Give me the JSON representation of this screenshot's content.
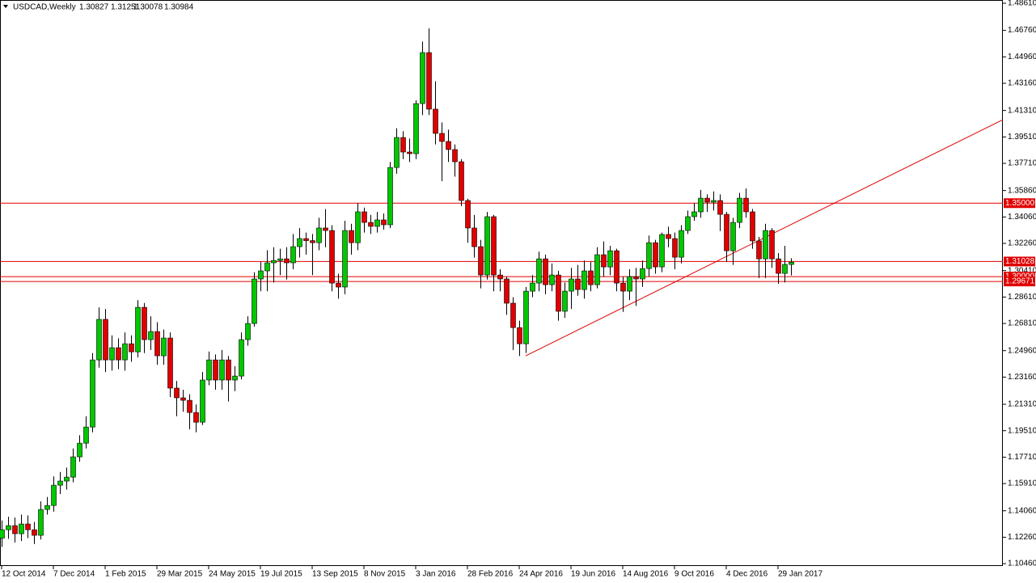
{
  "chart_data": {
    "type": "candlestick",
    "title": "USDCAD,Weekly",
    "categories": [
      "12 Oct 2014",
      null,
      null,
      null,
      null,
      null,
      null,
      null,
      "7 Dec 2014",
      null,
      null,
      null,
      null,
      null,
      null,
      null,
      "1 Feb 2015",
      null,
      null,
      null,
      null,
      null,
      null,
      null,
      "29 Mar 2015",
      null,
      null,
      null,
      null,
      null,
      null,
      null,
      "24 May 2015",
      null,
      null,
      null,
      null,
      null,
      null,
      null,
      "19 Jul 2015",
      null,
      null,
      null,
      null,
      null,
      null,
      null,
      "13 Sep 2015",
      null,
      null,
      null,
      null,
      null,
      null,
      null,
      "8 Nov 2015",
      null,
      null,
      null,
      null,
      null,
      null,
      null,
      "3 Jan 2016",
      null,
      null,
      null,
      null,
      null,
      null,
      null,
      "28 Feb 2016",
      null,
      null,
      null,
      null,
      null,
      null,
      null,
      "24 Apr 2016",
      null,
      null,
      null,
      null,
      null,
      null,
      null,
      "19 Jun 2016",
      null,
      null,
      null,
      null,
      null,
      null,
      null,
      "14 Aug 2016",
      null,
      null,
      null,
      null,
      null,
      null,
      null,
      "9 Oct 2016",
      null,
      null,
      null,
      null,
      null,
      null,
      null,
      "4 Dec 2016",
      null,
      null,
      null,
      null,
      null,
      null,
      null,
      "29 Jan 2017",
      null,
      null
    ],
    "ohlc": [
      [
        1.122,
        1.134,
        1.116,
        1.1277
      ],
      [
        1.1277,
        1.1365,
        1.1215,
        1.1305
      ],
      [
        1.1305,
        1.136,
        1.119,
        1.125
      ],
      [
        1.125,
        1.138,
        1.12,
        1.1316
      ],
      [
        1.1316,
        1.1375,
        1.122,
        1.1277
      ],
      [
        1.1277,
        1.133,
        1.118,
        1.1239
      ],
      [
        1.1239,
        1.147,
        1.121,
        1.1415
      ],
      [
        1.1415,
        1.15,
        1.138,
        1.1442
      ],
      [
        1.1442,
        1.164,
        1.14,
        1.158
      ],
      [
        1.158,
        1.167,
        1.152,
        1.1608
      ],
      [
        1.1608,
        1.17,
        1.155,
        1.1635
      ],
      [
        1.1635,
        1.183,
        1.16,
        1.1773
      ],
      [
        1.1773,
        1.192,
        1.174,
        1.1866
      ],
      [
        1.1866,
        1.205,
        1.183,
        1.1976
      ],
      [
        1.1976,
        1.248,
        1.194,
        1.2433
      ],
      [
        1.2433,
        1.279,
        1.238,
        1.2709
      ],
      [
        1.2709,
        1.278,
        1.235,
        1.2433
      ],
      [
        1.2433,
        1.26,
        1.236,
        1.2516
      ],
      [
        1.2516,
        1.258,
        1.237,
        1.2433
      ],
      [
        1.2433,
        1.262,
        1.236,
        1.2543
      ],
      [
        1.2543,
        1.26,
        1.242,
        1.2488
      ],
      [
        1.2488,
        1.284,
        1.245,
        1.2791
      ],
      [
        1.2791,
        1.282,
        1.248,
        1.2571
      ],
      [
        1.2571,
        1.273,
        1.25,
        1.2626
      ],
      [
        1.2626,
        1.269,
        1.24,
        1.2461
      ],
      [
        1.2461,
        1.264,
        1.24,
        1.2582
      ],
      [
        1.2582,
        1.262,
        1.218,
        1.2241
      ],
      [
        1.2241,
        1.229,
        1.205,
        1.2175
      ],
      [
        1.2175,
        1.223,
        1.208,
        1.2158
      ],
      [
        1.2158,
        1.22,
        1.196,
        1.2075
      ],
      [
        1.2075,
        1.213,
        1.194,
        1.2009
      ],
      [
        1.2009,
        1.235,
        1.199,
        1.2296
      ],
      [
        1.2296,
        1.249,
        1.226,
        1.2433
      ],
      [
        1.2433,
        1.247,
        1.223,
        1.2296
      ],
      [
        1.2296,
        1.25,
        1.223,
        1.2433
      ],
      [
        1.2433,
        1.246,
        1.215,
        1.2296
      ],
      [
        1.2296,
        1.239,
        1.222,
        1.2323
      ],
      [
        1.2323,
        1.262,
        1.23,
        1.2571
      ],
      [
        1.2571,
        1.273,
        1.253,
        1.2681
      ],
      [
        1.2681,
        1.303,
        1.266,
        1.2984
      ],
      [
        1.2984,
        1.31,
        1.29,
        1.3039
      ],
      [
        1.3039,
        1.318,
        1.29,
        1.3094
      ],
      [
        1.3094,
        1.32,
        1.296,
        1.311
      ],
      [
        1.311,
        1.319,
        1.301,
        1.3121
      ],
      [
        1.3121,
        1.32,
        1.298,
        1.3094
      ],
      [
        1.3094,
        1.329,
        1.305,
        1.3204
      ],
      [
        1.3204,
        1.333,
        1.313,
        1.3259
      ],
      [
        1.3259,
        1.33,
        1.315,
        1.3245
      ],
      [
        1.3245,
        1.329,
        1.301,
        1.3231
      ],
      [
        1.3231,
        1.34,
        1.318,
        1.3331
      ],
      [
        1.3331,
        1.346,
        1.32,
        1.3314
      ],
      [
        1.3314,
        1.335,
        1.29,
        1.2956
      ],
      [
        1.2956,
        1.302,
        1.285,
        1.2929
      ],
      [
        1.2929,
        1.338,
        1.288,
        1.3314
      ],
      [
        1.3314,
        1.336,
        1.315,
        1.3231
      ],
      [
        1.3231,
        1.35,
        1.318,
        1.3441
      ],
      [
        1.3441,
        1.347,
        1.33,
        1.3369
      ],
      [
        1.3369,
        1.342,
        1.329,
        1.3342
      ],
      [
        1.3342,
        1.344,
        1.33,
        1.3386
      ],
      [
        1.3386,
        1.343,
        1.332,
        1.3353
      ],
      [
        1.3353,
        1.378,
        1.333,
        1.3743
      ],
      [
        1.3743,
        1.401,
        1.37,
        1.3947
      ],
      [
        1.3947,
        1.399,
        1.38,
        1.3848
      ],
      [
        1.3848,
        1.394,
        1.378,
        1.3837
      ],
      [
        1.3837,
        1.42,
        1.38,
        1.4178
      ],
      [
        1.4178,
        1.46,
        1.41,
        1.4525
      ],
      [
        1.4525,
        1.469,
        1.41,
        1.414
      ],
      [
        1.414,
        1.433,
        1.39,
        1.3975
      ],
      [
        1.3975,
        1.405,
        1.365,
        1.392
      ],
      [
        1.392,
        1.4,
        1.378,
        1.3865
      ],
      [
        1.3865,
        1.39,
        1.368,
        1.3782
      ],
      [
        1.3782,
        1.38,
        1.348,
        1.3518
      ],
      [
        1.3518,
        1.353,
        1.323,
        1.3331
      ],
      [
        1.3331,
        1.342,
        1.313,
        1.3204
      ],
      [
        1.3204,
        1.325,
        1.292,
        1.3011
      ],
      [
        1.3011,
        1.344,
        1.298,
        1.3408
      ],
      [
        1.3408,
        1.342,
        1.29,
        1.3011
      ],
      [
        1.3011,
        1.305,
        1.29,
        1.2984
      ],
      [
        1.2984,
        1.3,
        1.274,
        1.2819
      ],
      [
        1.2819,
        1.286,
        1.25,
        1.2653
      ],
      [
        1.2653,
        1.27,
        1.246,
        1.2543
      ],
      [
        1.2543,
        1.293,
        1.248,
        1.2901
      ],
      [
        1.2901,
        1.301,
        1.286,
        1.2956
      ],
      [
        1.2956,
        1.317,
        1.29,
        1.3121
      ],
      [
        1.3121,
        1.315,
        1.288,
        1.2945
      ],
      [
        1.2945,
        1.309,
        1.29,
        1.3011
      ],
      [
        1.3011,
        1.304,
        1.27,
        1.2764
      ],
      [
        1.2764,
        1.296,
        1.272,
        1.2901
      ],
      [
        1.2901,
        1.306,
        1.278,
        1.2984
      ],
      [
        1.2984,
        1.308,
        1.287,
        1.2912
      ],
      [
        1.2912,
        1.311,
        1.285,
        1.3039
      ],
      [
        1.3039,
        1.31,
        1.29,
        1.2945
      ],
      [
        1.2945,
        1.32,
        1.292,
        1.3149
      ],
      [
        1.3149,
        1.324,
        1.3,
        1.3066
      ],
      [
        1.3066,
        1.321,
        1.301,
        1.3176
      ],
      [
        1.3176,
        1.319,
        1.29,
        1.2956
      ],
      [
        1.2956,
        1.3,
        1.276,
        1.2901
      ],
      [
        1.2901,
        1.305,
        1.284,
        1.3
      ],
      [
        1.3,
        1.306,
        1.28,
        1.2984
      ],
      [
        1.2984,
        1.311,
        1.293,
        1.3055
      ],
      [
        1.3055,
        1.328,
        1.3,
        1.3231
      ],
      [
        1.3231,
        1.325,
        1.302,
        1.3066
      ],
      [
        1.3066,
        1.33,
        1.303,
        1.3287
      ],
      [
        1.3287,
        1.334,
        1.32,
        1.3259
      ],
      [
        1.3259,
        1.33,
        1.305,
        1.3132
      ],
      [
        1.3132,
        1.335,
        1.309,
        1.3314
      ],
      [
        1.3314,
        1.345,
        1.329,
        1.3408
      ],
      [
        1.3408,
        1.35,
        1.338,
        1.3441
      ],
      [
        1.3441,
        1.359,
        1.34,
        1.3534
      ],
      [
        1.3534,
        1.356,
        1.344,
        1.3507
      ],
      [
        1.3507,
        1.358,
        1.345,
        1.3518
      ],
      [
        1.3518,
        1.356,
        1.331,
        1.3424
      ],
      [
        1.3424,
        1.344,
        1.31,
        1.3176
      ],
      [
        1.3176,
        1.34,
        1.308,
        1.3369
      ],
      [
        1.3369,
        1.357,
        1.333,
        1.3534
      ],
      [
        1.3534,
        1.36,
        1.34,
        1.3441
      ],
      [
        1.3441,
        1.346,
        1.319,
        1.3243
      ],
      [
        1.3243,
        1.327,
        1.299,
        1.3121
      ],
      [
        1.3121,
        1.336,
        1.299,
        1.3314
      ],
      [
        1.3314,
        1.333,
        1.306,
        1.3121
      ],
      [
        1.3121,
        1.316,
        1.295,
        1.3022
      ],
      [
        1.3022,
        1.321,
        1.296,
        1.3083
      ],
      [
        1.30827,
        1.31251,
        1.30078,
        1.30984
      ]
    ],
    "up_color": "#00c800",
    "down_color": "#e00000",
    "wick_color": "#000000",
    "ylim": [
      1.103,
      1.4883
    ],
    "yticks": [
      {
        "value": 1.4861,
        "label": "1.48610"
      },
      {
        "value": 1.4676,
        "label": "1.46760"
      },
      {
        "value": 1.4496,
        "label": "1.44960"
      },
      {
        "value": 1.4316,
        "label": "1.43160"
      },
      {
        "value": 1.4131,
        "label": "1.41310"
      },
      {
        "value": 1.3951,
        "label": "1.39510"
      },
      {
        "value": 1.3771,
        "label": "1.37710"
      },
      {
        "value": 1.3586,
        "label": "1.35860"
      },
      {
        "value": 1.3406,
        "label": "1.34060"
      },
      {
        "value": 1.3226,
        "label": "1.32260"
      },
      {
        "value": 1.3041,
        "label": "1.30410"
      },
      {
        "value": 1.2861,
        "label": "1.28610"
      },
      {
        "value": 1.2681,
        "label": "1.26810"
      },
      {
        "value": 1.2496,
        "label": "1.24960"
      },
      {
        "value": 1.2316,
        "label": "1.23160"
      },
      {
        "value": 1.2131,
        "label": "1.21310"
      },
      {
        "value": 1.1951,
        "label": "1.19510"
      },
      {
        "value": 1.1771,
        "label": "1.17710"
      },
      {
        "value": 1.1591,
        "label": "1.15910"
      },
      {
        "value": 1.1406,
        "label": "1.14060"
      },
      {
        "value": 1.1226,
        "label": "1.12260"
      },
      {
        "value": 1.1046,
        "label": "1.10460"
      }
    ],
    "levels": [
      {
        "value": 1.35,
        "label": "1.35000"
      },
      1.31028,
      {
        "value": 1.3,
        "label": "1.30000"
      },
      1.29671
    ],
    "level_color": "#e00000",
    "trendline": {
      "x": [
        81,
        154.75
      ],
      "y": [
        1.2461,
        1.4068
      ],
      "color": "#e00000"
    },
    "grid": false
  }
}
